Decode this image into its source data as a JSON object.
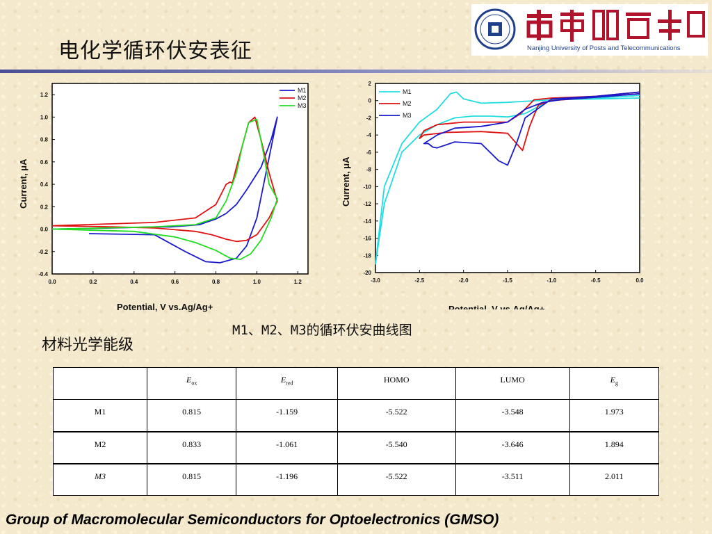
{
  "title": "电化学循环伏安表征",
  "logo": {
    "university_cn": "南京郵電大學",
    "university_en": "Nanjing University of Posts and Telecommunications",
    "colors": {
      "blue": "#1f3f8a",
      "red": "#b0142c"
    }
  },
  "caption": "M1、M2、M3的循环伏安曲线图",
  "section_title": "材料光学能级",
  "footer": "Group of Macromolecular Semiconductors for Optoelectronics (GMSO)",
  "chart_data": [
    {
      "type": "line",
      "xlabel": "Potential, V vs.Ag/Ag+",
      "ylabel": "Current, μA",
      "xlim": [
        0.0,
        1.25
      ],
      "ylim": [
        -0.4,
        1.3
      ],
      "xticks": [
        "0.0",
        "0.2",
        "0.4",
        "0.6",
        "0.8",
        "1.0",
        "1.2"
      ],
      "yticks": [
        "-0.4",
        "-0.2",
        "0.0",
        "0.2",
        "0.4",
        "0.6",
        "0.8",
        "1.0",
        "1.2"
      ],
      "legend": "top-right",
      "grid": false,
      "series": [
        {
          "name": "M1",
          "color": "#1a1acc",
          "x": [
            0.18,
            0.5,
            0.65,
            0.75,
            0.82,
            0.9,
            0.95,
            1.0,
            1.05,
            1.1,
            1.07,
            1.02,
            0.95,
            0.9,
            0.85,
            0.8,
            0.75,
            0.72,
            0.65,
            0.58,
            0.5,
            0.3,
            0.0
          ],
          "y": [
            -0.04,
            -0.05,
            -0.2,
            -0.29,
            -0.3,
            -0.26,
            -0.15,
            0.1,
            0.55,
            1.0,
            0.8,
            0.55,
            0.35,
            0.22,
            0.14,
            0.09,
            0.06,
            0.04,
            0.03,
            0.02,
            0.02,
            0.01,
            0.0
          ]
        },
        {
          "name": "M2",
          "color": "#e01010",
          "x": [
            0.0,
            0.5,
            0.7,
            0.8,
            0.85,
            0.87,
            0.88,
            0.9,
            0.93,
            0.96,
            0.99,
            1.02,
            1.06,
            1.1,
            1.06,
            1.0,
            0.95,
            0.9,
            0.85,
            0.78,
            0.7,
            0.5,
            0.3,
            0.0
          ],
          "y": [
            0.03,
            0.06,
            0.1,
            0.22,
            0.4,
            0.42,
            0.41,
            0.55,
            0.75,
            0.95,
            1.0,
            0.8,
            0.5,
            0.25,
            0.1,
            -0.05,
            -0.1,
            -0.11,
            -0.09,
            -0.05,
            -0.02,
            0.01,
            0.02,
            0.03
          ]
        },
        {
          "name": "M3",
          "color": "#22dd22",
          "x": [
            0.0,
            0.5,
            0.7,
            0.8,
            0.85,
            0.9,
            0.93,
            0.96,
            1.0,
            1.03,
            1.06,
            1.1,
            1.07,
            1.02,
            0.97,
            0.92,
            0.87,
            0.8,
            0.7,
            0.6,
            0.4,
            0.0
          ],
          "y": [
            0.0,
            0.02,
            0.04,
            0.1,
            0.25,
            0.5,
            0.75,
            0.95,
            0.98,
            0.7,
            0.4,
            0.27,
            0.1,
            -0.1,
            -0.22,
            -0.27,
            -0.26,
            -0.19,
            -0.12,
            -0.07,
            -0.02,
            0.0
          ]
        }
      ]
    },
    {
      "type": "line",
      "xlabel": "Potential, V vs.Ag/Ag+",
      "ylabel": "Current, μA",
      "xlim": [
        -3.0,
        0.0
      ],
      "ylim": [
        -20,
        2
      ],
      "xticks": [
        "-3.0",
        "-2.5",
        "-2.0",
        "-1.5",
        "-1.0",
        "-0.5",
        "0.0"
      ],
      "yticks": [
        "2",
        "0",
        "-2",
        "-4",
        "-6",
        "-8",
        "-10",
        "-12",
        "-14",
        "-16",
        "-18",
        "-20"
      ],
      "legend": "top-left",
      "grid": false,
      "series": [
        {
          "name": "M1",
          "color": "#22dde0",
          "x": [
            0.0,
            -0.5,
            -1.0,
            -1.5,
            -1.8,
            -2.0,
            -2.08,
            -2.15,
            -2.3,
            -2.5,
            -2.7,
            -2.9,
            -3.0,
            -2.9,
            -2.7,
            -2.5,
            -2.3,
            -2.1,
            -1.9,
            -1.7,
            -1.5,
            -1.3,
            -1.0,
            -0.5,
            0.0
          ],
          "y": [
            0.6,
            0.3,
            0.1,
            -0.2,
            -0.3,
            0.2,
            1.0,
            0.8,
            -1.0,
            -2.5,
            -5.0,
            -10.0,
            -19.0,
            -12.0,
            -6.0,
            -4.0,
            -2.8,
            -2.0,
            -1.8,
            -1.8,
            -1.9,
            -1.5,
            0.1,
            0.2,
            0.3
          ]
        },
        {
          "name": "M2",
          "color": "#e01010",
          "x": [
            0.0,
            -0.5,
            -1.0,
            -1.15,
            -1.25,
            -1.33,
            -1.5,
            -1.8,
            -2.2,
            -2.45,
            -2.5,
            -2.45,
            -2.3,
            -2.0,
            -1.7,
            -1.5,
            -1.35,
            -1.2,
            -1.0,
            -0.5,
            0.0
          ],
          "y": [
            0.8,
            0.4,
            0.0,
            -0.5,
            -3.0,
            -5.8,
            -3.8,
            -3.6,
            -3.7,
            -4.0,
            -4.4,
            -3.5,
            -2.8,
            -2.5,
            -2.5,
            -2.5,
            -1.5,
            0.1,
            0.3,
            0.5,
            1.0
          ]
        },
        {
          "name": "M3",
          "color": "#1a1acc",
          "x": [
            0.0,
            -0.5,
            -1.0,
            -1.3,
            -1.4,
            -1.5,
            -1.6,
            -1.8,
            -2.1,
            -2.3,
            -2.35,
            -2.4,
            -2.45,
            -2.3,
            -2.1,
            -1.8,
            -1.5,
            -1.3,
            -1.1,
            -0.9,
            -0.5,
            0.0
          ],
          "y": [
            1.0,
            0.5,
            0.2,
            -2.0,
            -5.0,
            -7.5,
            -7.0,
            -5.0,
            -4.8,
            -5.5,
            -5.4,
            -5.0,
            -5.0,
            -4.0,
            -3.2,
            -3.0,
            -2.5,
            -1.0,
            -0.2,
            0.1,
            0.4,
            0.8
          ]
        }
      ]
    }
  ],
  "table": {
    "columns": [
      "",
      "E_ox",
      "E_red",
      "HOMO",
      "LUMO",
      "E_g"
    ],
    "header": {
      "eox_base": "E",
      "eox_sub": "ox",
      "ered_base": "E",
      "ered_sub": "red",
      "homo": "HOMO",
      "lumo": "LUMO",
      "eg_base": "E",
      "eg_sub": "g"
    },
    "rows": [
      {
        "name": "M1",
        "eox": "0.815",
        "ered": "-1.159",
        "homo": "-5.522",
        "lumo": "-3.548",
        "eg": "1.973"
      },
      {
        "name": "M2",
        "eox": "0.833",
        "ered": "-1.061",
        "homo": "-5.540",
        "lumo": "-3.646",
        "eg": "1.894"
      },
      {
        "name": "M3",
        "eox": "0.815",
        "ered": "-1.196",
        "homo": "-5.522",
        "lumo": "-3.511",
        "eg": "2.011"
      }
    ]
  }
}
